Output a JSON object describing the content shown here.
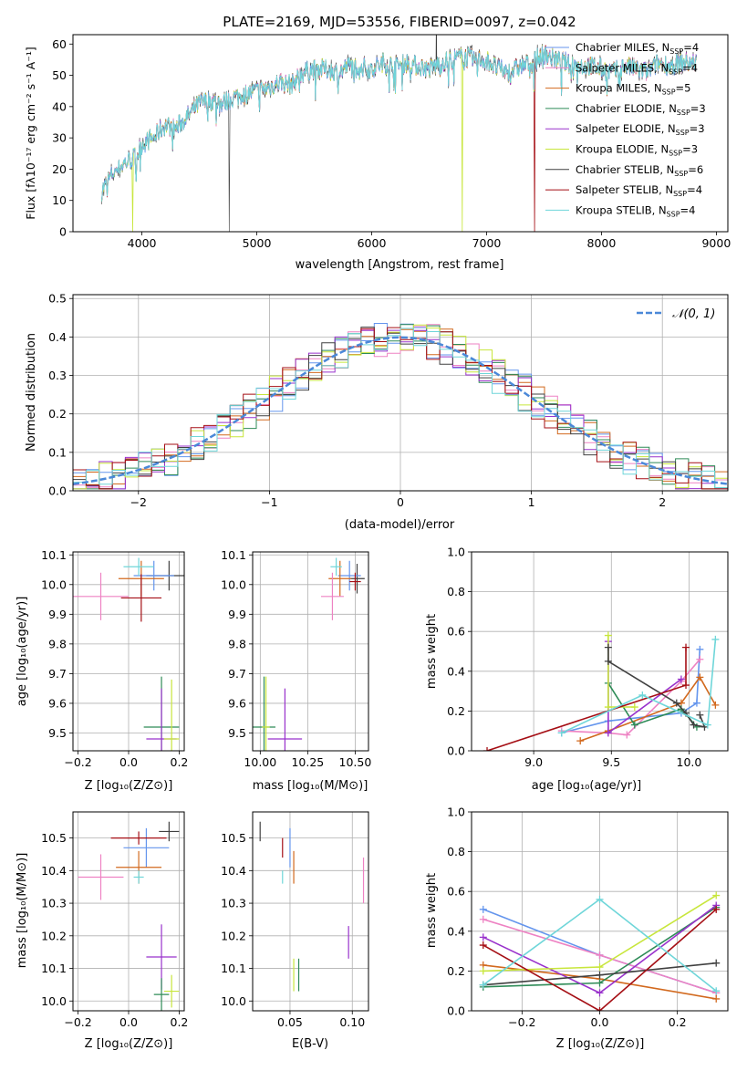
{
  "colors": {
    "series": [
      "#6495ed",
      "#ee82c3",
      "#d2691e",
      "#2e8b57",
      "#9932cc",
      "#c8e63c",
      "#404040",
      "#a50f15",
      "#6fd6d9"
    ],
    "gaussian": "#4a88d8"
  },
  "chart_data": [
    {
      "id": "spectrum",
      "type": "line",
      "title": "PLATE=2169, MJD=53556, FIBERID=0097, z=0.042",
      "xlabel": "wavelength [Angstrom, rest frame]",
      "ylabel": "Flux [fλ10⁻¹⁷ erg cm⁻² s⁻¹ A⁻¹]",
      "xlim": [
        3400,
        9100
      ],
      "ylim": [
        0,
        63
      ],
      "x_ticks": [
        4000,
        5000,
        6000,
        7000,
        8000,
        9000
      ],
      "y_ticks": [
        0,
        10,
        20,
        30,
        40,
        50,
        60
      ],
      "grid": false,
      "legend": "top-right",
      "continuum": [
        [
          3650,
          13
        ],
        [
          3750,
          19
        ],
        [
          3850,
          22
        ],
        [
          3950,
          24
        ],
        [
          4000,
          28
        ],
        [
          4100,
          30
        ],
        [
          4200,
          34
        ],
        [
          4300,
          33
        ],
        [
          4400,
          37
        ],
        [
          4500,
          41
        ],
        [
          4600,
          42
        ],
        [
          4700,
          41
        ],
        [
          4800,
          43
        ],
        [
          4900,
          44
        ],
        [
          5000,
          45
        ],
        [
          5100,
          46
        ],
        [
          5200,
          48
        ],
        [
          5300,
          47
        ],
        [
          5400,
          51
        ],
        [
          5500,
          52
        ],
        [
          5600,
          52
        ],
        [
          5700,
          51
        ],
        [
          5800,
          53
        ],
        [
          5900,
          53
        ],
        [
          6000,
          52
        ],
        [
          6100,
          54
        ],
        [
          6200,
          53
        ],
        [
          6300,
          54
        ],
        [
          6400,
          53
        ],
        [
          6500,
          52
        ],
        [
          6600,
          54
        ],
        [
          6700,
          55
        ],
        [
          6800,
          56
        ],
        [
          6900,
          55
        ],
        [
          7000,
          55
        ],
        [
          7100,
          52
        ],
        [
          7200,
          51
        ],
        [
          7300,
          53
        ],
        [
          7400,
          54
        ],
        [
          7500,
          57
        ],
        [
          7600,
          55
        ],
        [
          7700,
          54
        ],
        [
          7800,
          53
        ],
        [
          7900,
          53
        ],
        [
          8000,
          52
        ],
        [
          8100,
          51
        ],
        [
          8200,
          53
        ],
        [
          8300,
          52
        ],
        [
          8400,
          51
        ],
        [
          8500,
          54
        ],
        [
          8600,
          53
        ],
        [
          8700,
          54
        ],
        [
          8800,
          54
        ]
      ],
      "dropouts": [
        {
          "x": 3920,
          "series": 5
        },
        {
          "x": 4760,
          "series": 6
        },
        {
          "x": 6790,
          "series": 5
        },
        {
          "x": 7420,
          "series": 7
        }
      ],
      "series": [
        {
          "name": "Chabrier MILES, N_SSP=4"
        },
        {
          "name": "Salpeter MILES, N_SSP=4"
        },
        {
          "name": "Kroupa MILES, N_SSP=5"
        },
        {
          "name": "Chabrier ELODIE, N_SSP=3"
        },
        {
          "name": "Salpeter ELODIE, N_SSP=3"
        },
        {
          "name": "Kroupa ELODIE, N_SSP=3"
        },
        {
          "name": "Chabrier STELIB, N_SSP=6"
        },
        {
          "name": "Salpeter STELIB, N_SSP=4"
        },
        {
          "name": "Kroupa STELIB, N_SSP=4"
        }
      ]
    },
    {
      "id": "residuals",
      "type": "line",
      "xlabel": "(data-model)/error",
      "ylabel": "Normed distribution",
      "xlim": [
        -2.5,
        2.5
      ],
      "ylim": [
        0,
        0.51
      ],
      "x_ticks": [
        -2,
        -1,
        0,
        1,
        2
      ],
      "y_ticks": [
        0.0,
        0.1,
        0.2,
        0.3,
        0.4,
        0.5
      ],
      "grid": true,
      "legend": "top-right",
      "gaussian_label": "𝒩(0, 1)",
      "bin_width": 0.1
    },
    {
      "id": "age-vs-Z",
      "type": "scatter",
      "xlabel": "Z [log₁₀(Z/Z⊙)]",
      "ylabel": "age  [log₁₀(age/yr)]",
      "xlim": [
        -0.22,
        0.22
      ],
      "ylim": [
        9.44,
        10.11
      ],
      "x_ticks": [
        -0.2,
        0.0,
        0.2
      ],
      "y_ticks": [
        9.5,
        9.6,
        9.7,
        9.8,
        9.9,
        10.0,
        10.1
      ],
      "grid": true,
      "points": [
        {
          "x": 0.16,
          "y": 10.03,
          "xerr": 0.09,
          "yerr": 0.05,
          "s": 6
        },
        {
          "x": 0.1,
          "y": 10.03,
          "xerr": 0.08,
          "yerr": 0.05,
          "s": 0
        },
        {
          "x": 0.05,
          "y": 10.02,
          "xerr": 0.09,
          "yerr": 0.06,
          "s": 2
        },
        {
          "x": 0.04,
          "y": 10.06,
          "xerr": 0.06,
          "yerr": 0.03,
          "s": 8
        },
        {
          "x": -0.11,
          "y": 9.96,
          "xerr": 0.11,
          "yerr": 0.08,
          "s": 1
        },
        {
          "x": 0.05,
          "y": 9.955,
          "xerr": 0.08,
          "yerr": 0.08,
          "s": 7
        },
        {
          "x": 0.13,
          "y": 9.52,
          "xerr": 0.07,
          "yerr": 0.17,
          "s": 3
        },
        {
          "x": 0.13,
          "y": 9.48,
          "xerr": 0.06,
          "yerr": 0.17,
          "s": 4
        },
        {
          "x": 0.17,
          "y": 9.48,
          "xerr": 0.03,
          "yerr": 0.2,
          "s": 5
        }
      ]
    },
    {
      "id": "age-vs-mass",
      "type": "scatter",
      "xlabel": "mass [log₁₀(M/M⊙)]",
      "xlim": [
        9.96,
        10.57
      ],
      "ylim": [
        9.44,
        10.11
      ],
      "x_ticks": [
        10.0,
        10.25,
        10.5
      ],
      "y_ticks": [
        9.5,
        9.6,
        9.7,
        9.8,
        9.9,
        10.0,
        10.1
      ],
      "grid": true,
      "points": [
        {
          "x": 10.51,
          "y": 10.02,
          "xerr": 0.04,
          "yerr": 0.05,
          "s": 6
        },
        {
          "x": 10.47,
          "y": 10.03,
          "xerr": 0.06,
          "yerr": 0.05,
          "s": 0
        },
        {
          "x": 10.42,
          "y": 10.02,
          "xerr": 0.06,
          "yerr": 0.06,
          "s": 2
        },
        {
          "x": 10.4,
          "y": 10.06,
          "xerr": 0.03,
          "yerr": 0.03,
          "s": 8
        },
        {
          "x": 10.38,
          "y": 9.96,
          "xerr": 0.06,
          "yerr": 0.08,
          "s": 1
        },
        {
          "x": 10.5,
          "y": 10.01,
          "xerr": 0.03,
          "yerr": 0.03,
          "s": 7
        },
        {
          "x": 10.02,
          "y": 9.52,
          "xerr": 0.06,
          "yerr": 0.17,
          "s": 3
        },
        {
          "x": 10.13,
          "y": 9.48,
          "xerr": 0.09,
          "yerr": 0.17,
          "s": 4
        },
        {
          "x": 10.03,
          "y": 9.52,
          "xerr": 0.02,
          "yerr": 0.17,
          "s": 5
        }
      ]
    },
    {
      "id": "weight-vs-age",
      "type": "line",
      "xlabel": "age  [log₁₀(age/yr)]",
      "ylabel": "mass weight",
      "xlim": [
        8.6,
        10.25
      ],
      "ylim": [
        0.0,
        1.0
      ],
      "x_ticks": [
        9.0,
        9.5,
        10.0
      ],
      "y_ticks": [
        0.0,
        0.2,
        0.4,
        0.6,
        0.8,
        1.0
      ],
      "grid": true,
      "series": [
        {
          "s": 0,
          "points": [
            [
              9.18,
              0.09
            ],
            [
              9.48,
              0.15
            ],
            [
              9.95,
              0.19
            ],
            [
              10.05,
              0.24
            ],
            [
              10.07,
              0.51
            ]
          ]
        },
        {
          "s": 1,
          "points": [
            [
              9.18,
              0.1
            ],
            [
              9.48,
              0.09
            ],
            [
              9.6,
              0.08
            ],
            [
              9.95,
              0.35
            ],
            [
              10.07,
              0.46
            ]
          ]
        },
        {
          "s": 2,
          "points": [
            [
              9.3,
              0.05
            ],
            [
              9.48,
              0.1
            ],
            [
              9.95,
              0.24
            ],
            [
              10.07,
              0.37
            ],
            [
              10.17,
              0.23
            ]
          ]
        },
        {
          "s": 3,
          "points": [
            [
              9.48,
              0.34
            ],
            [
              9.65,
              0.13
            ],
            [
              9.95,
              0.21
            ],
            [
              10.05,
              0.12
            ]
          ]
        },
        {
          "s": 4,
          "points": [
            [
              9.48,
              0.55
            ],
            [
              9.48,
              0.09
            ],
            [
              9.95,
              0.36
            ]
          ]
        },
        {
          "s": 5,
          "points": [
            [
              9.48,
              0.58
            ],
            [
              9.48,
              0.22
            ],
            [
              9.65,
              0.22
            ]
          ]
        },
        {
          "s": 6,
          "points": [
            [
              9.48,
              0.52
            ],
            [
              9.48,
              0.45
            ],
            [
              9.92,
              0.24
            ],
            [
              9.98,
              0.19
            ],
            [
              10.03,
              0.13
            ],
            [
              10.1,
              0.12
            ],
            [
              10.07,
              0.18
            ]
          ]
        },
        {
          "s": 7,
          "points": [
            [
              8.7,
              0.0
            ],
            [
              9.98,
              0.33
            ],
            [
              9.98,
              0.52
            ]
          ]
        },
        {
          "s": 8,
          "points": [
            [
              9.18,
              0.09
            ],
            [
              9.7,
              0.28
            ],
            [
              10.12,
              0.13
            ],
            [
              10.17,
              0.56
            ]
          ]
        }
      ]
    },
    {
      "id": "mass-vs-Z",
      "type": "scatter",
      "xlabel": "Z [log₁₀(Z/Z⊙)]",
      "ylabel": "mass [log₁₀(M/M⊙)]",
      "xlim": [
        -0.22,
        0.22
      ],
      "ylim": [
        9.97,
        10.58
      ],
      "x_ticks": [
        -0.2,
        0.0,
        0.2
      ],
      "y_ticks": [
        10.0,
        10.1,
        10.2,
        10.3,
        10.4,
        10.5
      ],
      "grid": true,
      "points": [
        {
          "x": 0.16,
          "y": 10.52,
          "xerr": 0.04,
          "yerr": 0.03,
          "s": 6
        },
        {
          "x": 0.07,
          "y": 10.47,
          "xerr": 0.09,
          "yerr": 0.06,
          "s": 0
        },
        {
          "x": 0.04,
          "y": 10.41,
          "xerr": 0.09,
          "yerr": 0.05,
          "s": 2
        },
        {
          "x": 0.04,
          "y": 10.38,
          "xerr": 0.02,
          "yerr": 0.02,
          "s": 8
        },
        {
          "x": -0.11,
          "y": 10.38,
          "xerr": 0.09,
          "yerr": 0.07,
          "s": 1
        },
        {
          "x": 0.04,
          "y": 10.5,
          "xerr": 0.11,
          "yerr": 0.02,
          "s": 7
        },
        {
          "x": 0.13,
          "y": 10.135,
          "xerr": 0.06,
          "yerr": 0.1,
          "s": 4
        },
        {
          "x": 0.13,
          "y": 10.02,
          "xerr": 0.03,
          "yerr": 0.05,
          "s": 3
        },
        {
          "x": 0.17,
          "y": 10.03,
          "xerr": 0.03,
          "yerr": 0.05,
          "s": 5
        }
      ]
    },
    {
      "id": "mass-vs-ebv",
      "type": "scatter",
      "xlabel": "E(B-V)",
      "xlim": [
        0.02,
        0.113
      ],
      "ylim": [
        9.97,
        10.58
      ],
      "x_ticks": [
        0.05,
        0.1
      ],
      "y_ticks": [
        10.0,
        10.1,
        10.2,
        10.3,
        10.4,
        10.5
      ],
      "grid": true,
      "points": [
        {
          "x": 0.026,
          "y": 10.52,
          "yerr": 0.03,
          "s": 6
        },
        {
          "x": 0.044,
          "y": 10.47,
          "yerr": 0.03,
          "s": 7
        },
        {
          "x": 0.05,
          "y": 10.47,
          "yerr": 0.06,
          "s": 0
        },
        {
          "x": 0.053,
          "y": 10.41,
          "yerr": 0.05,
          "s": 2
        },
        {
          "x": 0.044,
          "y": 10.38,
          "yerr": 0.02,
          "s": 8
        },
        {
          "x": 0.109,
          "y": 10.37,
          "yerr": 0.07,
          "s": 1
        },
        {
          "x": 0.097,
          "y": 10.18,
          "yerr": 0.05,
          "s": 4
        },
        {
          "x": 0.053,
          "y": 10.08,
          "yerr": 0.05,
          "s": 5
        },
        {
          "x": 0.057,
          "y": 10.08,
          "yerr": 0.05,
          "s": 3
        }
      ]
    },
    {
      "id": "weight-vs-Z",
      "type": "line",
      "xlabel": "Z [log₁₀(Z/Z⊙)]",
      "ylabel": "mass weight",
      "xlim": [
        -0.33,
        0.33
      ],
      "ylim": [
        0.0,
        1.0
      ],
      "x_ticks": [
        -0.2,
        0.0,
        0.2
      ],
      "y_ticks": [
        0.0,
        0.2,
        0.4,
        0.6,
        0.8,
        1.0
      ],
      "grid": true,
      "series": [
        {
          "s": 0,
          "points": [
            [
              -0.3,
              0.51
            ],
            [
              0.0,
              0.28
            ],
            [
              0.3,
              0.09
            ]
          ]
        },
        {
          "s": 1,
          "points": [
            [
              -0.3,
              0.46
            ],
            [
              0.0,
              0.28
            ],
            [
              0.3,
              0.09
            ]
          ]
        },
        {
          "s": 2,
          "points": [
            [
              -0.3,
              0.23
            ],
            [
              0.0,
              0.16
            ],
            [
              0.3,
              0.06
            ]
          ]
        },
        {
          "s": 3,
          "points": [
            [
              -0.3,
              0.12
            ],
            [
              0.0,
              0.14
            ],
            [
              0.3,
              0.52
            ]
          ]
        },
        {
          "s": 4,
          "points": [
            [
              -0.3,
              0.37
            ],
            [
              0.0,
              0.09
            ],
            [
              0.3,
              0.53
            ]
          ]
        },
        {
          "s": 5,
          "points": [
            [
              -0.3,
              0.2
            ],
            [
              0.0,
              0.22
            ],
            [
              0.3,
              0.58
            ]
          ]
        },
        {
          "s": 6,
          "points": [
            [
              -0.3,
              0.13
            ],
            [
              0.0,
              0.18
            ],
            [
              0.3,
              0.24
            ]
          ]
        },
        {
          "s": 7,
          "points": [
            [
              -0.3,
              0.33
            ],
            [
              0.0,
              0.0
            ],
            [
              0.3,
              0.51
            ]
          ]
        },
        {
          "s": 8,
          "points": [
            [
              -0.3,
              0.13
            ],
            [
              0.0,
              0.56
            ],
            [
              0.3,
              0.1
            ]
          ]
        }
      ]
    }
  ]
}
